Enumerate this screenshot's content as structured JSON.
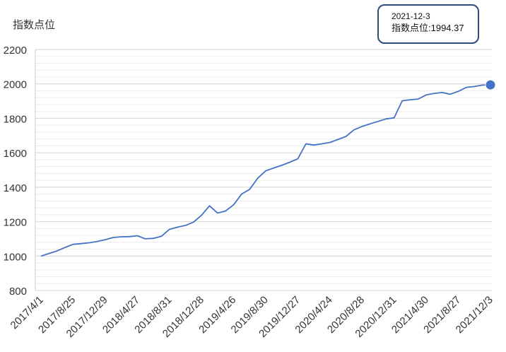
{
  "chart_data": {
    "type": "area",
    "ylabel": "指数点位",
    "ylim": [
      800,
      2200
    ],
    "yticks": [
      800,
      1000,
      1200,
      1400,
      1600,
      1800,
      2000,
      2200
    ],
    "xtick_labels": [
      "2017/4/1",
      "2017/8/25",
      "2017/12/29",
      "2018/4/27",
      "2018/8/31",
      "2018/12/28",
      "2019/4/26",
      "2019/8/30",
      "2019/12/27",
      "2020/4/24",
      "2020/8/28",
      "2020/12/31",
      "2021/4/30",
      "2021/8/27",
      "2021/12/3"
    ],
    "series": [
      {
        "values": [
          1000,
          1015,
          1030,
          1050,
          1068,
          1072,
          1077,
          1085,
          1095,
          1108,
          1112,
          1113,
          1118,
          1100,
          1103,
          1115,
          1155,
          1168,
          1178,
          1197,
          1237,
          1292,
          1250,
          1262,
          1298,
          1360,
          1388,
          1452,
          1495,
          1512,
          1527,
          1545,
          1565,
          1652,
          1645,
          1652,
          1660,
          1677,
          1695,
          1733,
          1753,
          1768,
          1782,
          1797,
          1803,
          1902,
          1908,
          1912,
          1936,
          1945,
          1950,
          1940,
          1957,
          1980,
          1985,
          1993,
          1994.37
        ]
      }
    ],
    "tooltip": {
      "date": "2021-12-3",
      "label": "指数点位:1994.37"
    },
    "grid": true,
    "line_color": "#4472c4",
    "fill_color": "#4472c4"
  }
}
